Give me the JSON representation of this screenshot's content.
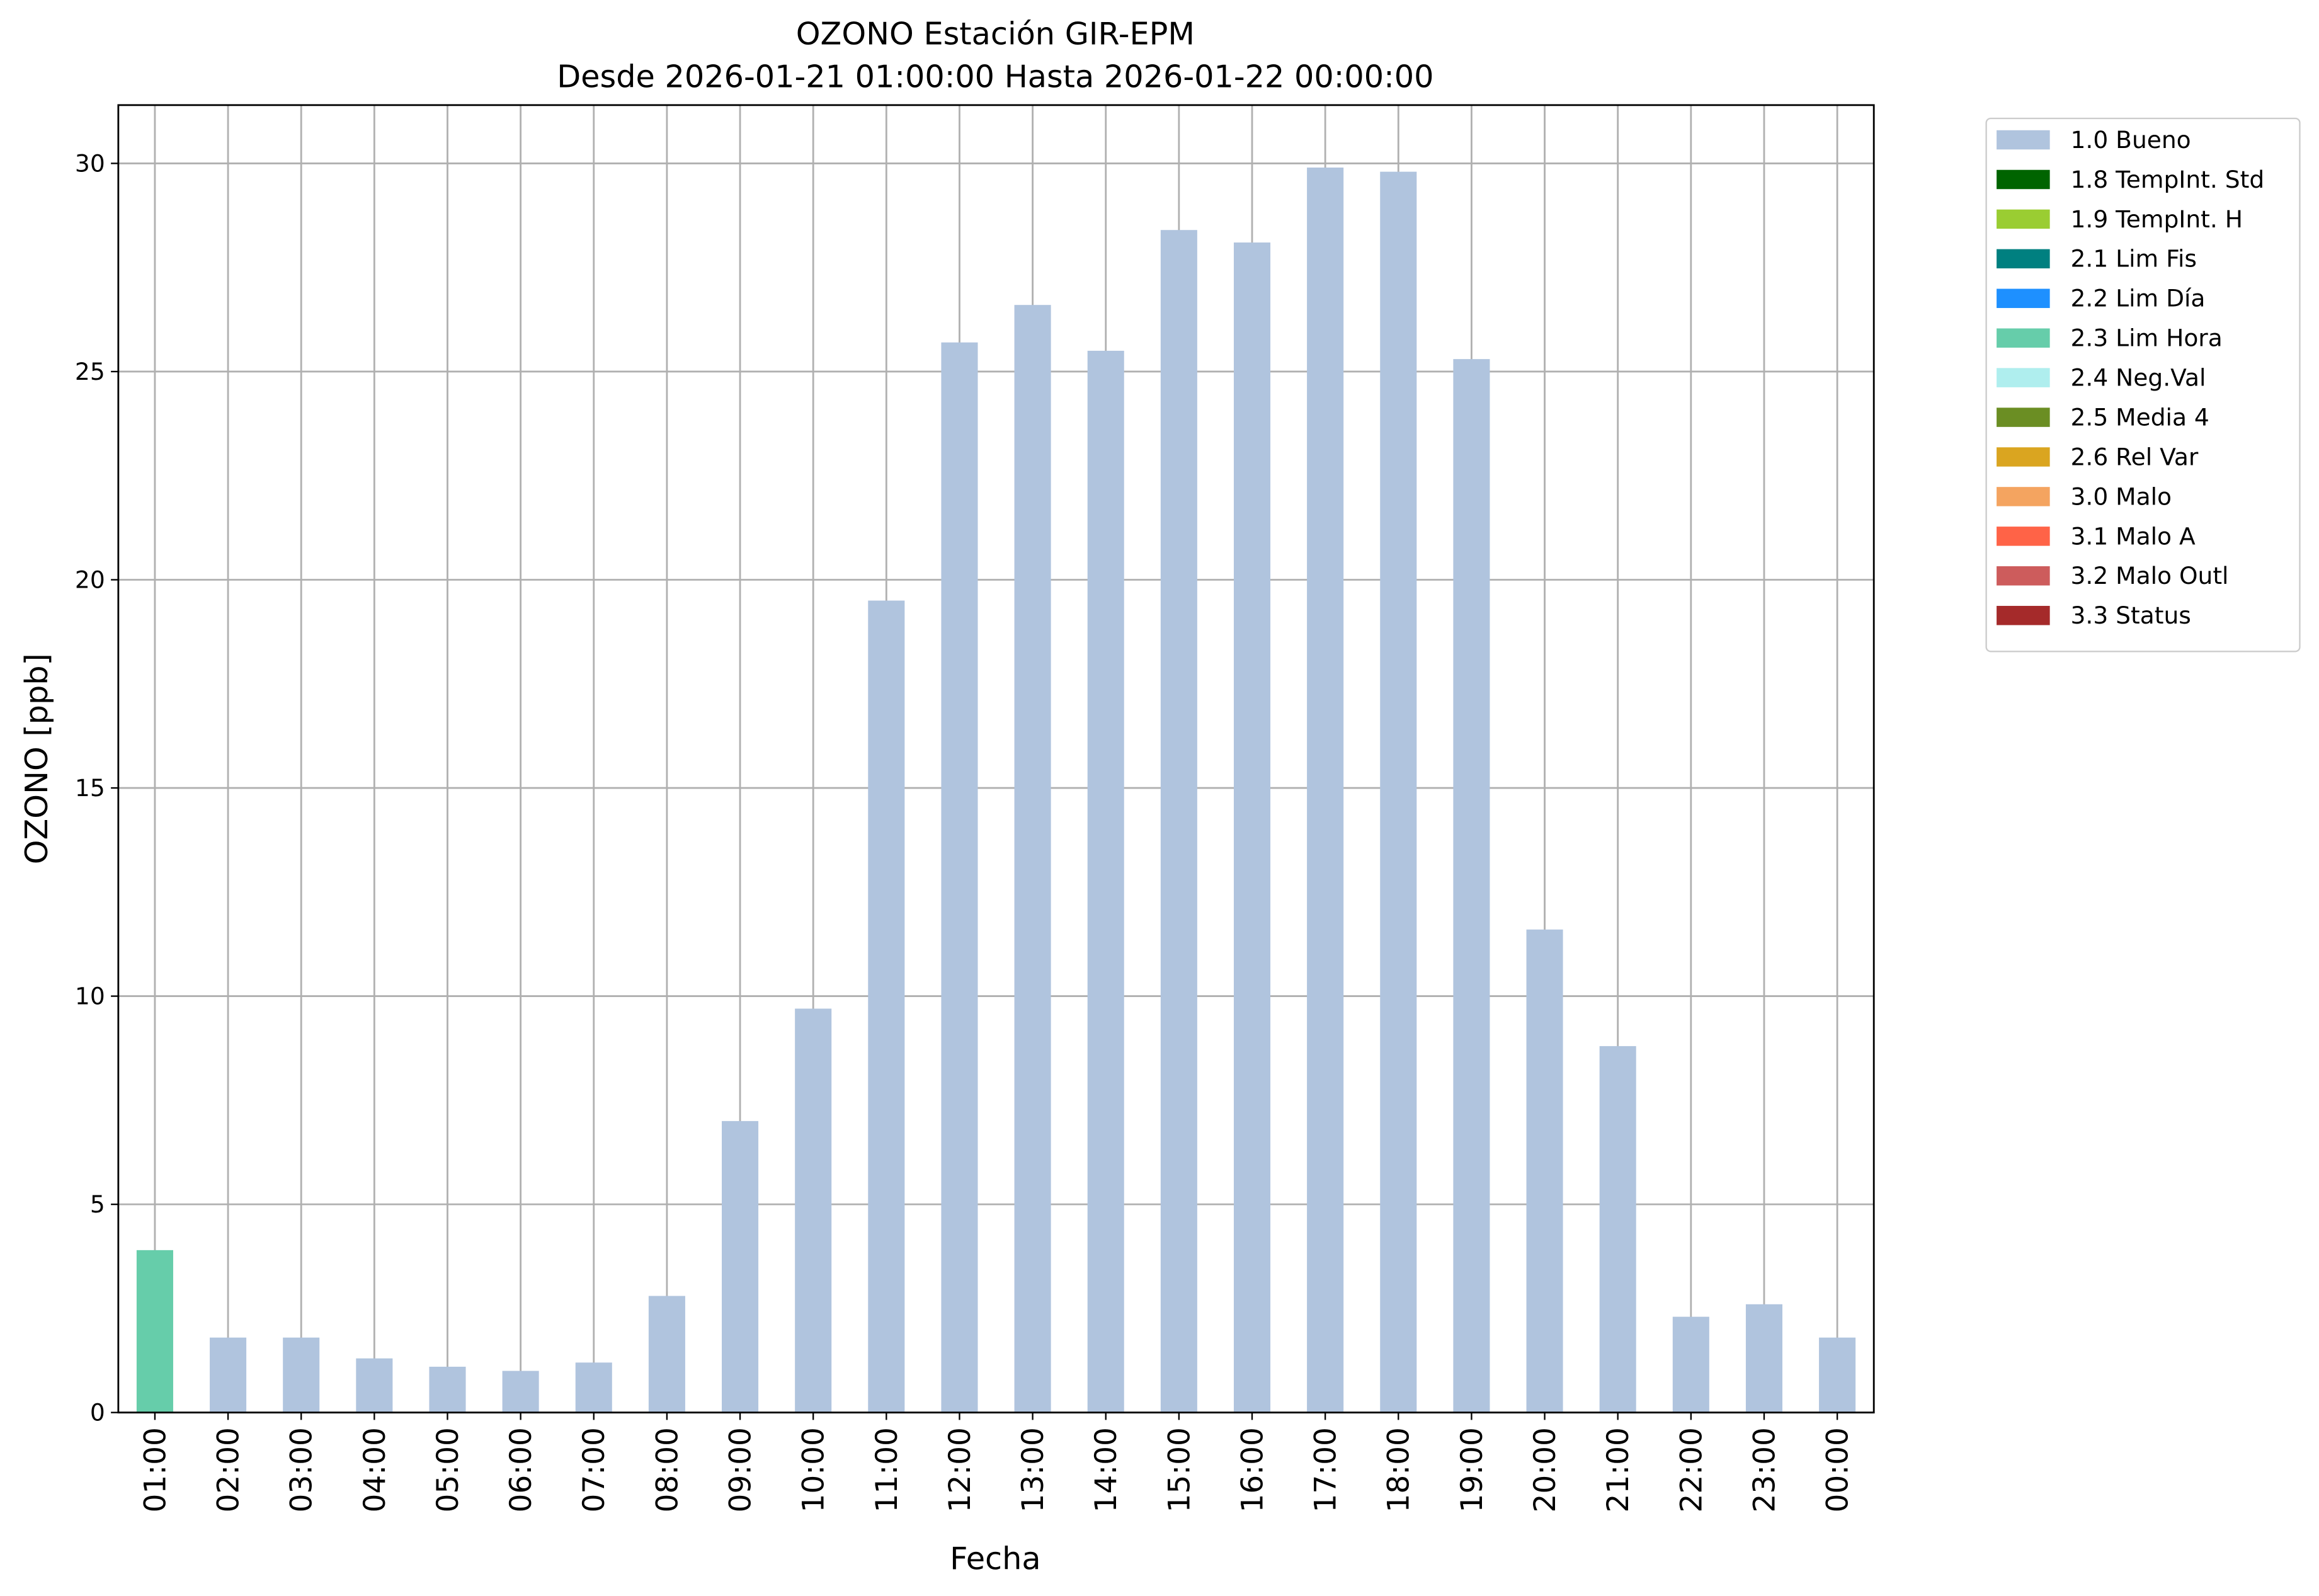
{
  "chart_data": {
    "type": "stacked-bar",
    "title": "OZONO Estación GIR-EPM",
    "subtitle": "Desde 2026-01-21 01:00:00 Hasta 2026-01-22 00:00:00",
    "x_label": "Fecha",
    "y_label": "OZONO [ppb]",
    "categories": [
      "01:00",
      "02:00",
      "03:00",
      "04:00",
      "05:00",
      "06:00",
      "07:00",
      "08:00",
      "09:00",
      "10:00",
      "11:00",
      "12:00",
      "13:00",
      "14:00",
      "15:00",
      "16:00",
      "17:00",
      "18:00",
      "19:00",
      "20:00",
      "21:00",
      "22:00",
      "23:00",
      "00:00"
    ],
    "series": [
      {
        "name": "1.0 Bueno",
        "color": "#b0c4de",
        "values": [
          null,
          1.8,
          1.8,
          1.3,
          1.1,
          1.0,
          1.2,
          2.8,
          7.0,
          9.7,
          19.5,
          25.7,
          26.6,
          25.5,
          28.4,
          28.1,
          29.9,
          29.8,
          25.3,
          11.6,
          8.8,
          2.3,
          2.6,
          1.8
        ]
      },
      {
        "name": "1.8 TempInt. Std",
        "color": "#006400",
        "values": [
          null,
          null,
          null,
          null,
          null,
          null,
          null,
          null,
          null,
          null,
          null,
          null,
          null,
          null,
          null,
          null,
          null,
          null,
          null,
          null,
          null,
          null,
          null,
          null
        ]
      },
      {
        "name": "1.9 TempInt. H",
        "color": "#9acd32",
        "values": [
          null,
          null,
          null,
          null,
          null,
          null,
          null,
          null,
          null,
          null,
          null,
          null,
          null,
          null,
          null,
          null,
          null,
          null,
          null,
          null,
          null,
          null,
          null,
          null
        ]
      },
      {
        "name": "2.1 Lim Fis",
        "color": "#008080",
        "values": [
          null,
          null,
          null,
          null,
          null,
          null,
          null,
          null,
          null,
          null,
          null,
          null,
          null,
          null,
          null,
          null,
          null,
          null,
          null,
          null,
          null,
          null,
          null,
          null
        ]
      },
      {
        "name": "2.2 Lim Día",
        "color": "#1e90ff",
        "values": [
          null,
          null,
          null,
          null,
          null,
          null,
          null,
          null,
          null,
          null,
          null,
          null,
          null,
          null,
          null,
          null,
          null,
          null,
          null,
          null,
          null,
          null,
          null,
          null
        ]
      },
      {
        "name": "2.3 Lim Hora",
        "color": "#66cdaa",
        "values": [
          3.9,
          null,
          null,
          null,
          null,
          null,
          null,
          null,
          null,
          null,
          null,
          null,
          null,
          null,
          null,
          null,
          null,
          null,
          null,
          null,
          null,
          null,
          null,
          null
        ]
      },
      {
        "name": "2.4 Neg.Val",
        "color": "#afeeee",
        "values": [
          null,
          null,
          null,
          null,
          null,
          null,
          null,
          null,
          null,
          null,
          null,
          null,
          null,
          null,
          null,
          null,
          null,
          null,
          null,
          null,
          null,
          null,
          null,
          null
        ]
      },
      {
        "name": "2.5 Media 4",
        "color": "#6b8e23",
        "values": [
          null,
          null,
          null,
          null,
          null,
          null,
          null,
          null,
          null,
          null,
          null,
          null,
          null,
          null,
          null,
          null,
          null,
          null,
          null,
          null,
          null,
          null,
          null,
          null
        ]
      },
      {
        "name": "2.6 Rel Var",
        "color": "#daa520",
        "values": [
          null,
          null,
          null,
          null,
          null,
          null,
          null,
          null,
          null,
          null,
          null,
          null,
          null,
          null,
          null,
          null,
          null,
          null,
          null,
          null,
          null,
          null,
          null,
          null
        ]
      },
      {
        "name": "3.0 Malo",
        "color": "#f4a460",
        "values": [
          null,
          null,
          null,
          null,
          null,
          null,
          null,
          null,
          null,
          null,
          null,
          null,
          null,
          null,
          null,
          null,
          null,
          null,
          null,
          null,
          null,
          null,
          null,
          null
        ]
      },
      {
        "name": "3.1 Malo A",
        "color": "#ff6347",
        "values": [
          null,
          null,
          null,
          null,
          null,
          null,
          null,
          null,
          null,
          null,
          null,
          null,
          null,
          null,
          null,
          null,
          null,
          null,
          null,
          null,
          null,
          null,
          null,
          null
        ]
      },
      {
        "name": "3.2 Malo Outl",
        "color": "#cd5c5c",
        "values": [
          null,
          null,
          null,
          null,
          null,
          null,
          null,
          null,
          null,
          null,
          null,
          null,
          null,
          null,
          null,
          null,
          null,
          null,
          null,
          null,
          null,
          null,
          null,
          null
        ]
      },
      {
        "name": "3.3 Status",
        "color": "#a52a2a",
        "values": [
          null,
          null,
          null,
          null,
          null,
          null,
          null,
          null,
          null,
          null,
          null,
          null,
          null,
          null,
          null,
          null,
          null,
          null,
          null,
          null,
          null,
          null,
          null,
          null
        ]
      }
    ],
    "ylim": [
      0,
      31.4
    ],
    "yticks": [
      0,
      5,
      10,
      15,
      20,
      25,
      30
    ],
    "grid": true,
    "legend": "outside-right"
  }
}
